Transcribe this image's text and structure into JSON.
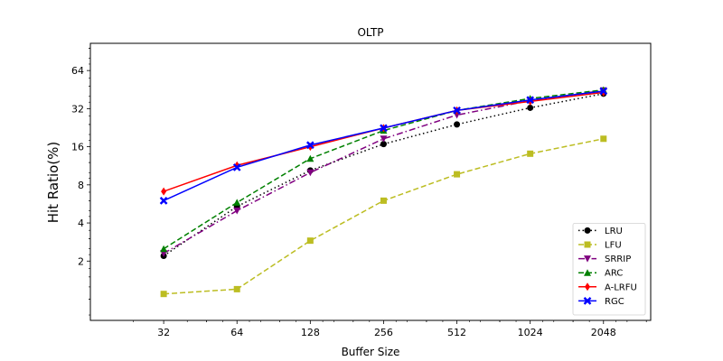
{
  "chart_data": {
    "type": "line",
    "title": "OLTP",
    "xlabel": "Buffer Size",
    "ylabel": "Hit Ratio(%)",
    "x_scale": "log2",
    "y_scale": "log2",
    "xlim": [
      16,
      3200
    ],
    "ylim": [
      0.68,
      105
    ],
    "x": [
      32,
      64,
      128,
      256,
      512,
      1024,
      2048
    ],
    "x_tick_labels": [
      "32",
      "64",
      "128",
      "256",
      "512",
      "1024",
      "2048"
    ],
    "y_ticks": [
      2,
      4,
      8,
      16,
      32,
      64
    ],
    "y_tick_labels": [
      "2",
      "4",
      "8",
      "16",
      "32",
      "64"
    ],
    "legend_position": "lower-right",
    "series": [
      {
        "name": "LRU",
        "color": "#000000",
        "linestyle": "dotted",
        "marker": "circle",
        "values": [
          2.2,
          5.4,
          10.4,
          16.8,
          24.0,
          32.5,
          42.0
        ]
      },
      {
        "name": "LFU",
        "color": "#bcbd22",
        "linestyle": "dashed",
        "marker": "square",
        "values": [
          1.1,
          1.2,
          2.9,
          6.0,
          9.7,
          14.1,
          18.5
        ]
      },
      {
        "name": "SRRIP",
        "color": "#800080",
        "linestyle": "dashdot",
        "marker": "triangle-down",
        "values": [
          2.3,
          5.0,
          10.0,
          18.5,
          28.5,
          37.0,
          44.5
        ]
      },
      {
        "name": "ARC",
        "color": "#008000",
        "linestyle": "dashed",
        "marker": "triangle-up",
        "values": [
          2.5,
          5.8,
          12.9,
          21.5,
          31.0,
          38.5,
          45.0
        ]
      },
      {
        "name": "A-LRFU",
        "color": "#ff0000",
        "linestyle": "solid",
        "marker": "diamond",
        "values": [
          7.1,
          11.4,
          16.0,
          22.5,
          31.0,
          36.5,
          43.0
        ]
      },
      {
        "name": "RGC",
        "color": "#0000ff",
        "linestyle": "solid",
        "marker": "x",
        "values": [
          6.0,
          11.0,
          16.5,
          22.5,
          31.0,
          37.5,
          44.0
        ]
      }
    ]
  }
}
